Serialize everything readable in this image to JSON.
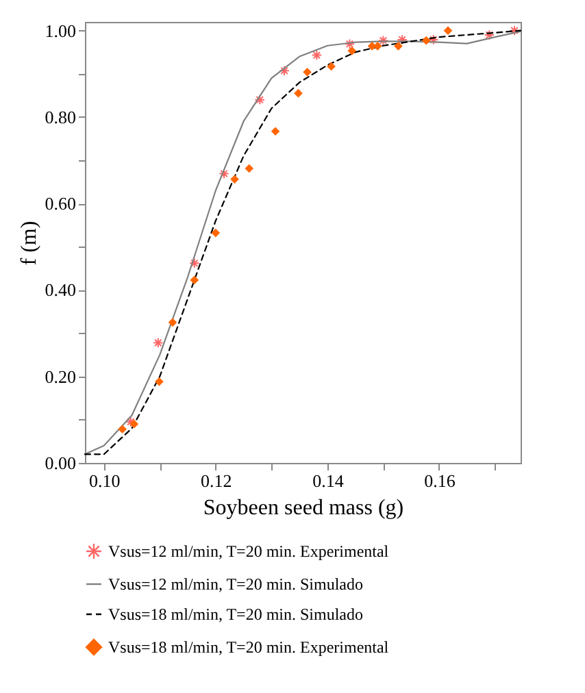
{
  "chart_data": {
    "type": "line",
    "xlabel": "Soybeen seed mass (g)",
    "ylabel": "f (m)",
    "xlim": [
      0.0966,
      0.1746
    ],
    "ylim": [
      0,
      1.02
    ],
    "xticks": [
      {
        "value": 0.1,
        "label": "0.10"
      },
      {
        "value": 0.11,
        "label": null
      },
      {
        "value": 0.12,
        "label": "0.12"
      },
      {
        "value": 0.13,
        "label": null
      },
      {
        "value": 0.14,
        "label": "0.14"
      },
      {
        "value": 0.15,
        "label": null
      },
      {
        "value": 0.16,
        "label": "0.16"
      },
      {
        "value": 0.17,
        "label": null
      }
    ],
    "yticks": [
      {
        "value": 0,
        "label": "0.00"
      },
      {
        "value": 0.1,
        "label": null
      },
      {
        "value": 0.2,
        "label": "0.20"
      },
      {
        "value": 0.3,
        "label": null
      },
      {
        "value": 0.4,
        "label": "0.40"
      },
      {
        "value": 0.5,
        "label": null
      },
      {
        "value": 0.6,
        "label": "0.60"
      },
      {
        "value": 0.7,
        "label": null
      },
      {
        "value": 0.8,
        "label": "0.80"
      },
      {
        "value": 0.9,
        "label": null
      },
      {
        "value": 1,
        "label": "1.00"
      }
    ],
    "legend": "bottom",
    "series": [
      {
        "name": "Vsus=12 ml/min, T=20 min. Experimental",
        "type": "scatter",
        "marker": "cross",
        "color": "#ff6666",
        "x": [
          0.1048,
          0.1097,
          0.1162,
          0.1215,
          0.1279,
          0.1323,
          0.1381,
          0.144,
          0.15,
          0.1534,
          0.159,
          0.169,
          0.1735
        ],
        "values": [
          0.095,
          0.278,
          0.462,
          0.669,
          0.84,
          0.907,
          0.943,
          0.969,
          0.977,
          0.979,
          0.979,
          0.99,
          1.0
        ]
      },
      {
        "name": "Vsus=12 ml/min, T=20 min. Simulado",
        "type": "line",
        "line_style": "solid",
        "color": "#808080",
        "x": [
          0.0966,
          0.1,
          0.105,
          0.11,
          0.115,
          0.12,
          0.125,
          0.13,
          0.135,
          0.14,
          0.145,
          0.15,
          0.155,
          0.16,
          0.165,
          0.17,
          0.1746
        ],
        "values": [
          0.02,
          0.04,
          0.11,
          0.25,
          0.43,
          0.63,
          0.79,
          0.89,
          0.94,
          0.965,
          0.973,
          0.975,
          0.975,
          0.973,
          0.97,
          0.985,
          0.998
        ]
      },
      {
        "name": "Vsus=18 ml/min, T=20 min. Simulado",
        "type": "line",
        "line_style": "dashed",
        "color": "#000000",
        "x": [
          0.0966,
          0.1,
          0.105,
          0.11,
          0.115,
          0.12,
          0.125,
          0.13,
          0.135,
          0.14,
          0.145,
          0.15,
          0.155,
          0.16,
          0.165,
          0.17,
          0.1746
        ],
        "values": [
          0.02,
          0.02,
          0.08,
          0.2,
          0.38,
          0.56,
          0.71,
          0.82,
          0.88,
          0.92,
          0.95,
          0.965,
          0.975,
          0.985,
          0.99,
          0.995,
          1.0
        ]
      },
      {
        "name": "Vsus=18 ml/min, T=20 min. Experimental",
        "type": "scatter",
        "marker": "diamond",
        "color": "#ff6600",
        "x": [
          0.1033,
          0.1054,
          0.1099,
          0.1123,
          0.1162,
          0.12,
          0.1234,
          0.126,
          0.1307,
          0.1348,
          0.1364,
          0.1407,
          0.1444,
          0.148,
          0.149,
          0.1527,
          0.1577,
          0.1616
        ],
        "values": [
          0.078,
          0.09,
          0.188,
          0.325,
          0.423,
          0.532,
          0.656,
          0.681,
          0.767,
          0.855,
          0.904,
          0.917,
          0.953,
          0.964,
          0.964,
          0.964,
          0.977,
          1.0
        ]
      }
    ]
  }
}
